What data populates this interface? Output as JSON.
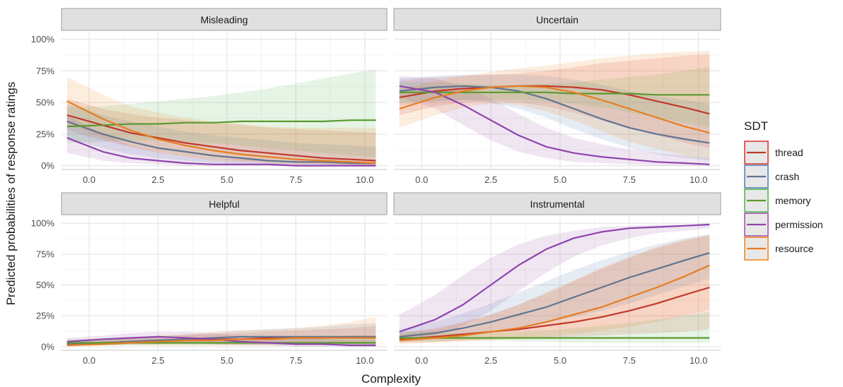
{
  "chart_data": {
    "type": "line",
    "xlabel": "Complexity",
    "ylabel": "Predicted probabilities of response ratings",
    "xlim": [
      -1,
      10.8
    ],
    "ylim": [
      -0.03,
      1.07
    ],
    "x_ticks": [
      0,
      2.5,
      5,
      7.5,
      10
    ],
    "x_tick_labels": [
      "0.0",
      "2.5",
      "5.0",
      "7.5",
      "10.0"
    ],
    "y_ticks": [
      0,
      0.25,
      0.5,
      0.75,
      1
    ],
    "y_tick_labels": [
      "0%",
      "25%",
      "50%",
      "75%",
      "100%"
    ],
    "x": [
      -0.8,
      0.5,
      1.5,
      2.5,
      3.5,
      4.5,
      5.5,
      6.5,
      7.5,
      8.5,
      9.5,
      10.4
    ],
    "legend": {
      "title": "SDT",
      "entries": [
        "thread",
        "crash",
        "memory",
        "permission",
        "resource"
      ],
      "colors": [
        "#d73027",
        "#4c7bb0",
        "#4daf4a",
        "#984ea3",
        "#f07f12"
      ],
      "line_colors": [
        "#c0392b",
        "#5f7590",
        "#5a9a2f",
        "#8e44ad",
        "#e67e22"
      ]
    },
    "panels": [
      {
        "title": "Misleading",
        "series": [
          {
            "name": "thread",
            "values": [
              0.4,
              0.32,
              0.26,
              0.22,
              0.18,
              0.15,
              0.12,
              0.1,
              0.08,
              0.06,
              0.05,
              0.04
            ],
            "lower": [
              0.28,
              0.2,
              0.15,
              0.11,
              0.08,
              0.06,
              0.04,
              0.03,
              0.02,
              0.01,
              0.01,
              0.0
            ],
            "upper": [
              0.53,
              0.45,
              0.41,
              0.38,
              0.36,
              0.34,
              0.32,
              0.3,
              0.29,
              0.28,
              0.27,
              0.26
            ]
          },
          {
            "name": "crash",
            "values": [
              0.35,
              0.25,
              0.19,
              0.14,
              0.11,
              0.08,
              0.06,
              0.04,
              0.03,
              0.03,
              0.02,
              0.02
            ],
            "lower": [
              0.22,
              0.14,
              0.09,
              0.06,
              0.04,
              0.02,
              0.01,
              0.01,
              0.0,
              0.0,
              0.0,
              0.0
            ],
            "upper": [
              0.49,
              0.4,
              0.35,
              0.31,
              0.27,
              0.24,
              0.22,
              0.2,
              0.18,
              0.17,
              0.16,
              0.15
            ]
          },
          {
            "name": "memory",
            "values": [
              0.31,
              0.32,
              0.33,
              0.33,
              0.34,
              0.34,
              0.35,
              0.35,
              0.35,
              0.35,
              0.36,
              0.36
            ],
            "lower": [
              0.18,
              0.19,
              0.2,
              0.2,
              0.19,
              0.18,
              0.16,
              0.14,
              0.12,
              0.1,
              0.08,
              0.07
            ],
            "upper": [
              0.46,
              0.47,
              0.49,
              0.51,
              0.53,
              0.55,
              0.58,
              0.61,
              0.65,
              0.69,
              0.73,
              0.76
            ]
          },
          {
            "name": "permission",
            "values": [
              0.22,
              0.11,
              0.06,
              0.04,
              0.02,
              0.01,
              0.01,
              0.01,
              0.0,
              0.0,
              0.0,
              0.0
            ],
            "lower": [
              0.1,
              0.04,
              0.02,
              0.01,
              0.0,
              0.0,
              0.0,
              0.0,
              0.0,
              0.0,
              0.0,
              0.0
            ],
            "upper": [
              0.4,
              0.25,
              0.16,
              0.11,
              0.08,
              0.06,
              0.05,
              0.04,
              0.04,
              0.03,
              0.03,
              0.03
            ]
          },
          {
            "name": "resource",
            "values": [
              0.51,
              0.37,
              0.28,
              0.21,
              0.16,
              0.12,
              0.09,
              0.07,
              0.05,
              0.04,
              0.03,
              0.02
            ],
            "lower": [
              0.33,
              0.22,
              0.15,
              0.1,
              0.07,
              0.04,
              0.03,
              0.02,
              0.01,
              0.01,
              0.0,
              0.0
            ],
            "upper": [
              0.7,
              0.56,
              0.47,
              0.42,
              0.38,
              0.35,
              0.33,
              0.31,
              0.3,
              0.3,
              0.3,
              0.3
            ]
          }
        ]
      },
      {
        "title": "Uncertain",
        "series": [
          {
            "name": "thread",
            "values": [
              0.54,
              0.59,
              0.61,
              0.62,
              0.63,
              0.63,
              0.62,
              0.6,
              0.56,
              0.51,
              0.46,
              0.41
            ],
            "lower": [
              0.4,
              0.47,
              0.5,
              0.51,
              0.5,
              0.47,
              0.42,
              0.36,
              0.3,
              0.24,
              0.18,
              0.14
            ],
            "upper": [
              0.67,
              0.7,
              0.71,
              0.72,
              0.73,
              0.75,
              0.78,
              0.81,
              0.83,
              0.85,
              0.87,
              0.88
            ]
          },
          {
            "name": "crash",
            "values": [
              0.59,
              0.62,
              0.63,
              0.62,
              0.59,
              0.53,
              0.45,
              0.37,
              0.3,
              0.25,
              0.21,
              0.18
            ],
            "lower": [
              0.48,
              0.51,
              0.52,
              0.5,
              0.45,
              0.38,
              0.29,
              0.21,
              0.14,
              0.09,
              0.06,
              0.04
            ],
            "upper": [
              0.69,
              0.71,
              0.72,
              0.72,
              0.72,
              0.71,
              0.68,
              0.64,
              0.59,
              0.55,
              0.52,
              0.49
            ]
          },
          {
            "name": "memory",
            "values": [
              0.58,
              0.58,
              0.58,
              0.58,
              0.58,
              0.58,
              0.57,
              0.57,
              0.57,
              0.56,
              0.56,
              0.56
            ],
            "lower": [
              0.5,
              0.51,
              0.52,
              0.52,
              0.52,
              0.51,
              0.49,
              0.46,
              0.42,
              0.38,
              0.34,
              0.3
            ],
            "upper": [
              0.66,
              0.66,
              0.65,
              0.64,
              0.64,
              0.65,
              0.66,
              0.68,
              0.7,
              0.72,
              0.75,
              0.78
            ]
          },
          {
            "name": "permission",
            "values": [
              0.63,
              0.58,
              0.48,
              0.36,
              0.24,
              0.15,
              0.1,
              0.07,
              0.05,
              0.03,
              0.02,
              0.01
            ],
            "lower": [
              0.54,
              0.45,
              0.32,
              0.2,
              0.11,
              0.06,
              0.03,
              0.02,
              0.01,
              0.0,
              0.0,
              0.0
            ],
            "upper": [
              0.71,
              0.69,
              0.63,
              0.53,
              0.41,
              0.3,
              0.22,
              0.17,
              0.13,
              0.1,
              0.08,
              0.06
            ]
          },
          {
            "name": "resource",
            "values": [
              0.45,
              0.54,
              0.59,
              0.62,
              0.63,
              0.62,
              0.58,
              0.52,
              0.45,
              0.38,
              0.31,
              0.26
            ],
            "lower": [
              0.3,
              0.4,
              0.46,
              0.49,
              0.48,
              0.43,
              0.36,
              0.27,
              0.19,
              0.13,
              0.08,
              0.05
            ],
            "upper": [
              0.6,
              0.67,
              0.71,
              0.74,
              0.77,
              0.79,
              0.82,
              0.85,
              0.87,
              0.89,
              0.9,
              0.91
            ]
          }
        ]
      },
      {
        "title": "Helpful",
        "series": [
          {
            "name": "thread",
            "values": [
              0.02,
              0.03,
              0.04,
              0.05,
              0.05,
              0.06,
              0.06,
              0.07,
              0.07,
              0.07,
              0.08,
              0.08
            ],
            "lower": [
              0.01,
              0.01,
              0.02,
              0.02,
              0.02,
              0.02,
              0.02,
              0.02,
              0.02,
              0.02,
              0.02,
              0.02
            ],
            "upper": [
              0.05,
              0.06,
              0.07,
              0.08,
              0.09,
              0.1,
              0.11,
              0.12,
              0.13,
              0.14,
              0.15,
              0.17
            ]
          },
          {
            "name": "crash",
            "values": [
              0.02,
              0.03,
              0.04,
              0.05,
              0.06,
              0.07,
              0.08,
              0.08,
              0.08,
              0.08,
              0.08,
              0.08
            ],
            "lower": [
              0.01,
              0.01,
              0.02,
              0.02,
              0.03,
              0.03,
              0.03,
              0.03,
              0.02,
              0.02,
              0.02,
              0.02
            ],
            "upper": [
              0.04,
              0.06,
              0.07,
              0.08,
              0.1,
              0.11,
              0.13,
              0.14,
              0.15,
              0.16,
              0.18,
              0.19
            ]
          },
          {
            "name": "memory",
            "values": [
              0.03,
              0.03,
              0.03,
              0.03,
              0.03,
              0.03,
              0.03,
              0.03,
              0.03,
              0.03,
              0.03,
              0.03
            ],
            "lower": [
              0.01,
              0.01,
              0.01,
              0.01,
              0.01,
              0.01,
              0.01,
              0.01,
              0.01,
              0.01,
              0.01,
              0.01
            ],
            "upper": [
              0.06,
              0.06,
              0.06,
              0.06,
              0.06,
              0.06,
              0.06,
              0.06,
              0.06,
              0.07,
              0.07,
              0.07
            ]
          },
          {
            "name": "permission",
            "values": [
              0.04,
              0.06,
              0.07,
              0.08,
              0.07,
              0.06,
              0.04,
              0.03,
              0.02,
              0.02,
              0.01,
              0.01
            ],
            "lower": [
              0.02,
              0.03,
              0.04,
              0.04,
              0.03,
              0.02,
              0.01,
              0.01,
              0.0,
              0.0,
              0.0,
              0.0
            ],
            "upper": [
              0.07,
              0.09,
              0.11,
              0.12,
              0.12,
              0.11,
              0.09,
              0.08,
              0.07,
              0.06,
              0.05,
              0.05
            ]
          },
          {
            "name": "resource",
            "values": [
              0.01,
              0.02,
              0.03,
              0.04,
              0.05,
              0.05,
              0.06,
              0.06,
              0.07,
              0.07,
              0.07,
              0.07
            ],
            "lower": [
              0.0,
              0.01,
              0.01,
              0.01,
              0.01,
              0.01,
              0.01,
              0.01,
              0.01,
              0.01,
              0.01,
              0.01
            ],
            "upper": [
              0.04,
              0.05,
              0.07,
              0.09,
              0.1,
              0.12,
              0.13,
              0.14,
              0.15,
              0.17,
              0.2,
              0.24
            ]
          }
        ]
      },
      {
        "title": "Instrumental",
        "series": [
          {
            "name": "thread",
            "values": [
              0.06,
              0.08,
              0.1,
              0.12,
              0.14,
              0.17,
              0.2,
              0.24,
              0.29,
              0.35,
              0.42,
              0.48
            ],
            "lower": [
              0.03,
              0.04,
              0.05,
              0.06,
              0.07,
              0.07,
              0.08,
              0.09,
              0.1,
              0.11,
              0.12,
              0.14
            ],
            "upper": [
              0.11,
              0.15,
              0.2,
              0.26,
              0.34,
              0.43,
              0.53,
              0.63,
              0.72,
              0.8,
              0.86,
              0.9
            ]
          },
          {
            "name": "crash",
            "values": [
              0.08,
              0.11,
              0.15,
              0.2,
              0.26,
              0.32,
              0.4,
              0.48,
              0.56,
              0.63,
              0.7,
              0.76
            ],
            "lower": [
              0.04,
              0.06,
              0.08,
              0.11,
              0.15,
              0.19,
              0.24,
              0.29,
              0.35,
              0.42,
              0.49,
              0.55
            ],
            "upper": [
              0.14,
              0.2,
              0.27,
              0.35,
              0.44,
              0.53,
              0.62,
              0.7,
              0.77,
              0.83,
              0.88,
              0.91
            ]
          },
          {
            "name": "memory",
            "values": [
              0.07,
              0.07,
              0.07,
              0.07,
              0.07,
              0.07,
              0.07,
              0.07,
              0.07,
              0.07,
              0.07,
              0.07
            ],
            "lower": [
              0.04,
              0.04,
              0.05,
              0.05,
              0.04,
              0.04,
              0.03,
              0.03,
              0.03,
              0.03,
              0.03,
              0.03
            ],
            "upper": [
              0.12,
              0.12,
              0.11,
              0.11,
              0.12,
              0.13,
              0.15,
              0.17,
              0.19,
              0.22,
              0.25,
              0.28
            ]
          },
          {
            "name": "permission",
            "values": [
              0.12,
              0.22,
              0.34,
              0.5,
              0.66,
              0.79,
              0.88,
              0.93,
              0.96,
              0.97,
              0.98,
              0.99
            ],
            "lower": [
              0.04,
              0.09,
              0.17,
              0.29,
              0.45,
              0.6,
              0.73,
              0.82,
              0.88,
              0.92,
              0.94,
              0.96
            ],
            "upper": [
              0.26,
              0.42,
              0.58,
              0.72,
              0.83,
              0.9,
              0.94,
              0.97,
              0.98,
              0.99,
              0.99,
              1.0
            ]
          },
          {
            "name": "resource",
            "values": [
              0.05,
              0.07,
              0.09,
              0.12,
              0.15,
              0.2,
              0.26,
              0.32,
              0.4,
              0.48,
              0.57,
              0.66
            ],
            "lower": [
              0.02,
              0.03,
              0.04,
              0.05,
              0.06,
              0.08,
              0.1,
              0.13,
              0.16,
              0.2,
              0.25,
              0.3
            ],
            "upper": [
              0.1,
              0.14,
              0.19,
              0.26,
              0.34,
              0.44,
              0.54,
              0.64,
              0.73,
              0.81,
              0.87,
              0.91
            ]
          }
        ]
      }
    ]
  }
}
